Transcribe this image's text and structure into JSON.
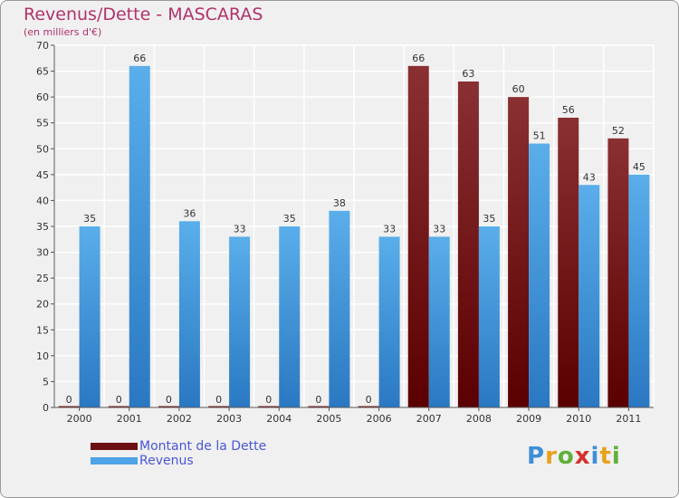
{
  "header": {
    "title": "Revenus/Dette - MASCARAS",
    "subtitle": "(en milliers d'€)"
  },
  "legend": [
    {
      "label": "Montant de la Dette",
      "color": "#6b0f12"
    },
    {
      "label": "Revenus",
      "color": "#4da3e6"
    }
  ],
  "logo": {
    "text": "Proxiti",
    "letters": [
      {
        "ch": "P",
        "color": "#3e8fd8"
      },
      {
        "ch": "r",
        "color": "#e8a21c"
      },
      {
        "ch": "o",
        "color": "#5fb13a"
      },
      {
        "ch": "x",
        "color": "#d2322d"
      },
      {
        "ch": "i",
        "color": "#3e8fd8"
      },
      {
        "ch": "t",
        "color": "#e8a21c"
      },
      {
        "ch": "i",
        "color": "#5fb13a"
      }
    ]
  },
  "chart_data": {
    "type": "bar",
    "title": "Revenus/Dette - MASCARAS",
    "subtitle": "(en milliers d'€)",
    "categories": [
      "2000",
      "2001",
      "2002",
      "2003",
      "2004",
      "2005",
      "2006",
      "2007",
      "2008",
      "2009",
      "2010",
      "2011"
    ],
    "series": [
      {
        "name": "Montant de la Dette",
        "color": "#6b0f12",
        "values": [
          0,
          0,
          0,
          0,
          0,
          0,
          0,
          66,
          63,
          60,
          56,
          52
        ]
      },
      {
        "name": "Revenus",
        "color": "#4da3e6",
        "values": [
          35,
          66,
          36,
          33,
          35,
          38,
          33,
          33,
          35,
          51,
          43,
          45
        ]
      }
    ],
    "ylim": [
      0,
      70
    ],
    "yticks": [
      0,
      5,
      10,
      15,
      20,
      25,
      30,
      35,
      40,
      45,
      50,
      55,
      60,
      65,
      70
    ],
    "grid": true,
    "legend_position": "bottom-left"
  }
}
